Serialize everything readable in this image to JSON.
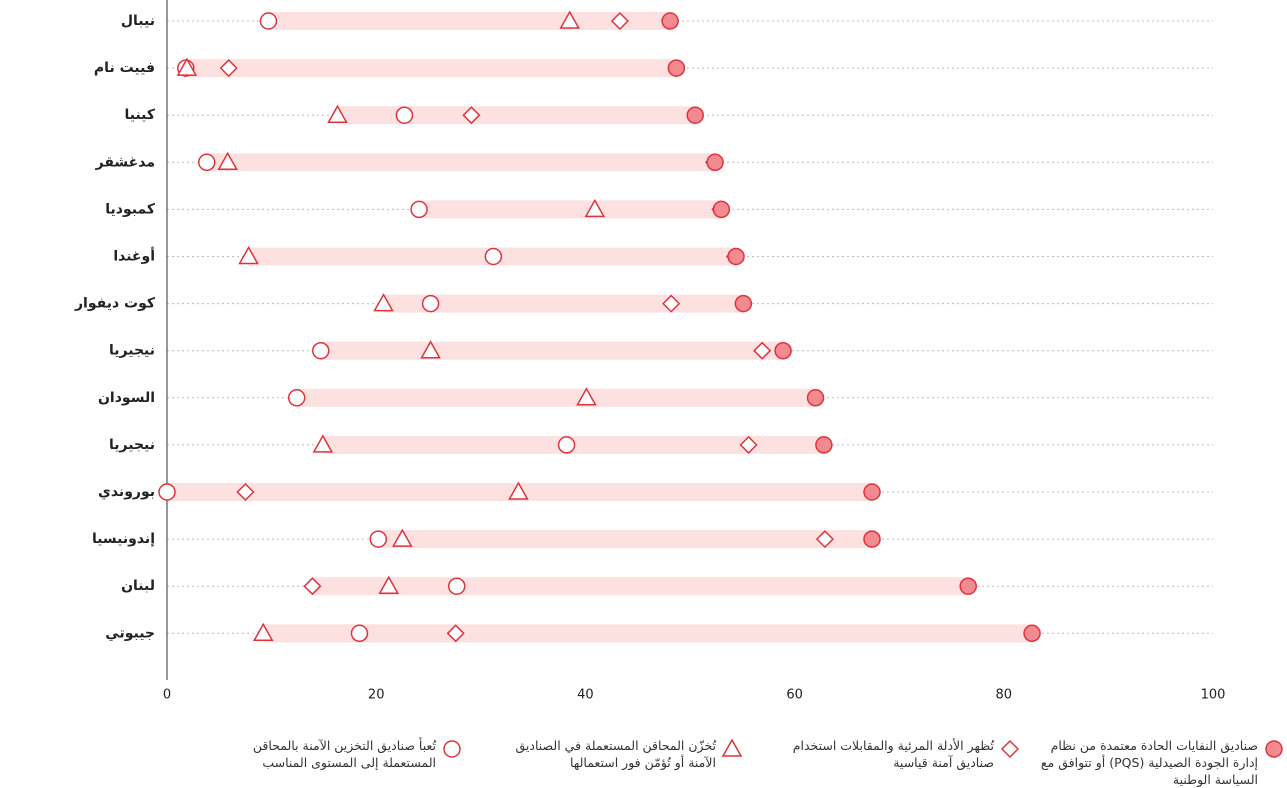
{
  "chart_data": {
    "type": "dot-range",
    "categories": [
      "نيبال",
      "فييت نام",
      "كينيا",
      "مدغشقر",
      "كمبوديا",
      "أوغندا",
      "كوت ديفوار",
      "نيجيريا",
      "السودان",
      "نيجيريا",
      "بوروندي",
      "إندونيسيا",
      "لبنان",
      "جيبوتي"
    ],
    "series": [
      {
        "name": "صناديق النفايات الحادة معتمدة من نظام إدارة الجودة الصيدلية (PQS) أو تتوافق مع السياسة الوطنية",
        "marker": "circle",
        "color": "#e0323c",
        "fill": "#f28b8f",
        "values": [
          48.1,
          48.7,
          50.5,
          52.4,
          53.0,
          54.4,
          55.1,
          58.9,
          62.0,
          62.8,
          67.4,
          67.4,
          76.6,
          82.7
        ]
      },
      {
        "name": "تُظهر الأدلة المرئية والمقابلات استخدام صناديق آمنة قياسية",
        "marker": "diamond",
        "color": "#e0323c",
        "fill": "#ffffff",
        "values": [
          43.3,
          5.9,
          29.1,
          52.3,
          52.9,
          54.3,
          48.2,
          56.9,
          null,
          55.6,
          7.5,
          62.9,
          13.9,
          27.6
        ]
      },
      {
        "name": "تُخزّن المحاقن المستعملة في الصناديق الآمنة أو تُؤمّن فور استعمالها",
        "marker": "triangle",
        "color": "#e0323c",
        "fill": "#ffffff",
        "values": [
          38.5,
          1.9,
          16.3,
          5.8,
          40.9,
          7.8,
          20.7,
          25.2,
          40.1,
          14.9,
          33.6,
          22.5,
          21.2,
          9.2
        ]
      },
      {
        "name": "تُعبأ صناديق التخزين الآمنة بالمحاقن المستعملة إلى المستوى المناسب",
        "marker": "circle",
        "color": "#e0323c",
        "fill": "#ffffff",
        "values": [
          9.7,
          1.8,
          22.7,
          3.8,
          24.1,
          31.2,
          25.2,
          14.7,
          12.4,
          38.2,
          0,
          20.2,
          27.7,
          18.4
        ]
      }
    ],
    "range_color": "#fde1e1",
    "xlim": [
      0,
      100
    ],
    "xticks": [
      0,
      20,
      40,
      60,
      80,
      100
    ],
    "grid": true
  }
}
